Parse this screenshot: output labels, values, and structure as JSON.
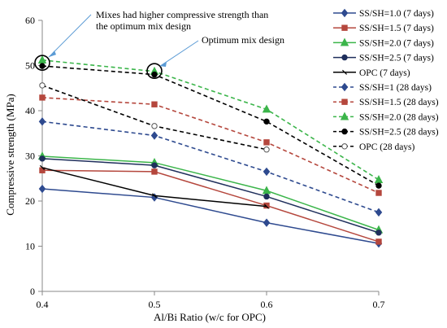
{
  "chart_data": {
    "type": "line",
    "title": "",
    "xlabel": "Al/Bi Ratio (w/c for OPC)",
    "ylabel": "Compressive strength  (MPa)",
    "x_ticks": [
      "0.4",
      "0.5",
      "0.6",
      "0.7"
    ],
    "xlim": [
      0.4,
      0.7
    ],
    "ylim": [
      0,
      60
    ],
    "y_ticks": [
      0,
      10,
      20,
      30,
      40,
      50,
      60
    ],
    "grid": false,
    "legend_position": "right",
    "series": [
      {
        "name": "SS/SH=1.0 (7 days)",
        "color": "#2e4a8f",
        "marker": "diamond",
        "dash": "solid",
        "x": [
          0.4,
          0.5,
          0.6,
          0.7
        ],
        "values": [
          22.7,
          20.8,
          15.2,
          10.6
        ]
      },
      {
        "name": "SS/SH=1.5 (7 days)",
        "color": "#b5473d",
        "marker": "square",
        "dash": "solid",
        "x": [
          0.4,
          0.5,
          0.6,
          0.7
        ],
        "values": [
          26.8,
          26.5,
          19.0,
          11.0
        ]
      },
      {
        "name": "SS/SH=2.0 (7 days)",
        "color": "#3bb54a",
        "marker": "triangle",
        "dash": "solid",
        "x": [
          0.4,
          0.5,
          0.6,
          0.7
        ],
        "values": [
          29.9,
          28.5,
          22.3,
          13.6
        ]
      },
      {
        "name": "SS/SH=2.5 (7 days)",
        "color": "#1f2f5c",
        "marker": "circle",
        "dash": "solid",
        "x": [
          0.4,
          0.5,
          0.6,
          0.7
        ],
        "values": [
          29.4,
          27.9,
          21.0,
          13.0
        ]
      },
      {
        "name": "OPC (7 days)",
        "color": "#000000",
        "marker": "x",
        "dash": "solid",
        "x": [
          0.4,
          0.5,
          0.6
        ],
        "values": [
          27.4,
          21.2,
          18.8
        ]
      },
      {
        "name": "SS/SH=1 (28 days)",
        "color": "#2e4a8f",
        "marker": "diamond",
        "dash": "dashed",
        "x": [
          0.4,
          0.5,
          0.6,
          0.7
        ],
        "values": [
          37.6,
          34.5,
          26.5,
          17.5
        ]
      },
      {
        "name": "SS/SH=1.5 (28 days)",
        "color": "#b5473d",
        "marker": "square",
        "dash": "dashed",
        "x": [
          0.4,
          0.5,
          0.6,
          0.7
        ],
        "values": [
          42.9,
          41.4,
          33.0,
          21.8
        ]
      },
      {
        "name": "SS/SH=2.0 (28 days)",
        "color": "#3bb54a",
        "marker": "triangle",
        "dash": "dashed",
        "x": [
          0.4,
          0.5,
          0.6,
          0.7
        ],
        "values": [
          51.2,
          48.7,
          40.3,
          24.7
        ]
      },
      {
        "name": "SS/SH=2.5 (28 days)",
        "color": "#000000",
        "marker": "circle",
        "dash": "dashed",
        "x": [
          0.4,
          0.5,
          0.6,
          0.7
        ],
        "values": [
          49.9,
          48.0,
          37.6,
          23.4
        ]
      },
      {
        "name": "OPC (28 days)",
        "color": "#000000",
        "marker": "open-circle",
        "dash": "dashed",
        "x": [
          0.4,
          0.5,
          0.6
        ],
        "values": [
          45.6,
          36.6,
          31.4
        ]
      }
    ],
    "annotations": [
      {
        "text_lines": [
          "Mixes had higher compressive strength than",
          "the optimum mix design"
        ],
        "target_x": 0.4,
        "target_y": 50.6
      },
      {
        "text_lines": [
          "Optimum mix design"
        ],
        "target_x": 0.5,
        "target_y": 48.8
      }
    ],
    "highlight_circles": [
      {
        "x": 0.4,
        "y": 50.6
      },
      {
        "x": 0.5,
        "y": 48.8
      }
    ]
  }
}
